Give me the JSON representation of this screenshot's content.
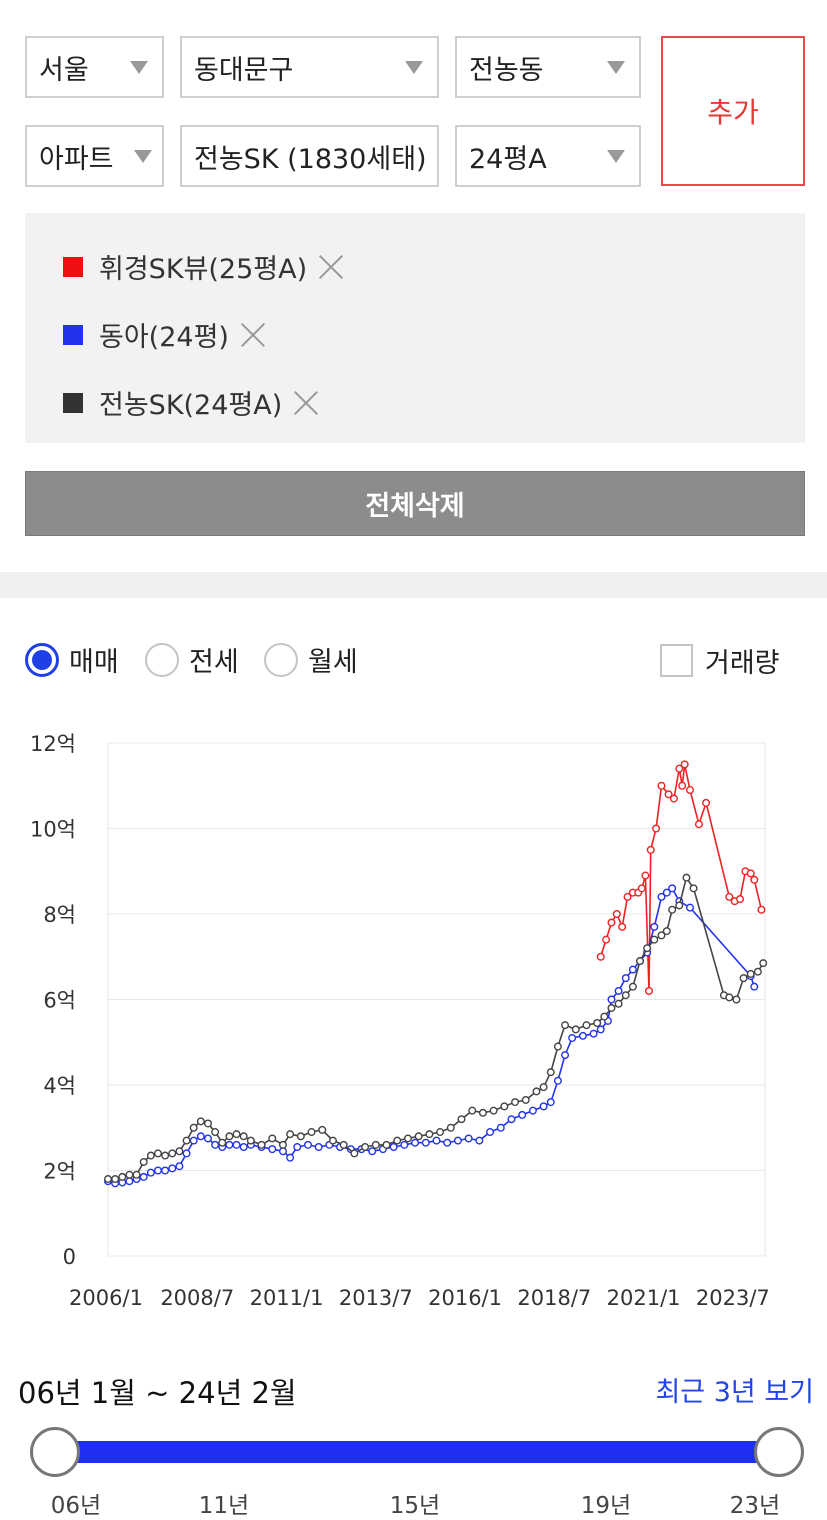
{
  "filters": {
    "city": "서울",
    "district": "동대문구",
    "dong": "전농동",
    "type": "아파트",
    "complex": "전농SK (1830세태)",
    "size": "24평A",
    "add_label": "추가"
  },
  "compare_list": [
    {
      "label": "휘경SK뷰(25평A)",
      "color": "#ee1111"
    },
    {
      "label": "동아(24평)",
      "color": "#2233ee"
    },
    {
      "label": "전농SK(24평A)",
      "color": "#333333"
    }
  ],
  "clear_all_label": "전체삭제",
  "trade_types": [
    "매매",
    "전세",
    "월세"
  ],
  "selected_trade_type": "매매",
  "volume_label": "거래량",
  "chart_data": {
    "type": "line",
    "y_ticks": [
      "0",
      "2억",
      "4억",
      "6억",
      "8억",
      "10억",
      "12억"
    ],
    "x_ticks": [
      "2006/1",
      "2008/7",
      "2011/1",
      "2013/7",
      "2016/1",
      "2018/7",
      "2021/1",
      "2023/7"
    ],
    "ylim": [
      0,
      12
    ],
    "y_unit": "억",
    "grid": true,
    "series": [
      {
        "color": "#ee2222",
        "points": [
          [
            2019.8,
            7.0
          ],
          [
            2019.95,
            7.4
          ],
          [
            2020.1,
            7.8
          ],
          [
            2020.25,
            8.0
          ],
          [
            2020.4,
            7.7
          ],
          [
            2020.55,
            8.4
          ],
          [
            2020.7,
            8.5
          ],
          [
            2020.85,
            8.5
          ],
          [
            2020.95,
            8.6
          ],
          [
            2021.05,
            8.9
          ],
          [
            2021.15,
            6.2
          ],
          [
            2021.2,
            9.5
          ],
          [
            2021.35,
            10.0
          ],
          [
            2021.5,
            11.0
          ],
          [
            2021.7,
            10.8
          ],
          [
            2021.85,
            10.7
          ],
          [
            2022.0,
            11.4
          ],
          [
            2022.08,
            11.0
          ],
          [
            2022.15,
            11.5
          ],
          [
            2022.3,
            10.9
          ],
          [
            2022.55,
            10.1
          ],
          [
            2022.75,
            10.6
          ],
          [
            2023.4,
            8.4
          ],
          [
            2023.55,
            8.3
          ],
          [
            2023.7,
            8.35
          ],
          [
            2023.85,
            9.0
          ],
          [
            2024.0,
            8.95
          ],
          [
            2024.1,
            8.8
          ],
          [
            2024.3,
            8.1
          ]
        ]
      },
      {
        "color": "#2233ee",
        "points": [
          [
            2006.0,
            1.75
          ],
          [
            2006.2,
            1.7
          ],
          [
            2006.4,
            1.72
          ],
          [
            2006.6,
            1.75
          ],
          [
            2006.8,
            1.8
          ],
          [
            2007.0,
            1.85
          ],
          [
            2007.2,
            1.95
          ],
          [
            2007.4,
            2.0
          ],
          [
            2007.6,
            2.0
          ],
          [
            2007.8,
            2.05
          ],
          [
            2008.0,
            2.1
          ],
          [
            2008.2,
            2.4
          ],
          [
            2008.4,
            2.7
          ],
          [
            2008.6,
            2.8
          ],
          [
            2008.8,
            2.75
          ],
          [
            2009.0,
            2.6
          ],
          [
            2009.2,
            2.55
          ],
          [
            2009.4,
            2.6
          ],
          [
            2009.6,
            2.6
          ],
          [
            2009.8,
            2.55
          ],
          [
            2010.0,
            2.6
          ],
          [
            2010.3,
            2.55
          ],
          [
            2010.6,
            2.5
          ],
          [
            2010.9,
            2.45
          ],
          [
            2011.1,
            2.3
          ],
          [
            2011.3,
            2.55
          ],
          [
            2011.6,
            2.6
          ],
          [
            2011.9,
            2.55
          ],
          [
            2012.2,
            2.6
          ],
          [
            2012.5,
            2.55
          ],
          [
            2012.8,
            2.5
          ],
          [
            2013.1,
            2.5
          ],
          [
            2013.4,
            2.45
          ],
          [
            2013.7,
            2.5
          ],
          [
            2014.0,
            2.55
          ],
          [
            2014.3,
            2.6
          ],
          [
            2014.6,
            2.65
          ],
          [
            2014.9,
            2.65
          ],
          [
            2015.2,
            2.7
          ],
          [
            2015.5,
            2.65
          ],
          [
            2015.8,
            2.7
          ],
          [
            2016.1,
            2.75
          ],
          [
            2016.4,
            2.7
          ],
          [
            2016.7,
            2.9
          ],
          [
            2017.0,
            3.0
          ],
          [
            2017.3,
            3.2
          ],
          [
            2017.6,
            3.3
          ],
          [
            2017.9,
            3.4
          ],
          [
            2018.2,
            3.5
          ],
          [
            2018.4,
            3.6
          ],
          [
            2018.6,
            4.1
          ],
          [
            2018.8,
            4.7
          ],
          [
            2019.0,
            5.1
          ],
          [
            2019.3,
            5.15
          ],
          [
            2019.6,
            5.2
          ],
          [
            2019.8,
            5.3
          ],
          [
            2020.0,
            5.5
          ],
          [
            2020.1,
            6.0
          ],
          [
            2020.3,
            6.2
          ],
          [
            2020.5,
            6.5
          ],
          [
            2020.7,
            6.7
          ],
          [
            2020.9,
            6.9
          ],
          [
            2021.1,
            7.1
          ],
          [
            2021.3,
            7.7
          ],
          [
            2021.5,
            8.4
          ],
          [
            2021.65,
            8.5
          ],
          [
            2021.8,
            8.6
          ],
          [
            2022.0,
            8.3
          ],
          [
            2022.3,
            8.15
          ],
          [
            2024.0,
            6.55
          ],
          [
            2024.1,
            6.3
          ]
        ]
      },
      {
        "color": "#444444",
        "points": [
          [
            2006.0,
            1.8
          ],
          [
            2006.2,
            1.8
          ],
          [
            2006.4,
            1.85
          ],
          [
            2006.6,
            1.9
          ],
          [
            2006.8,
            1.9
          ],
          [
            2007.0,
            2.2
          ],
          [
            2007.2,
            2.35
          ],
          [
            2007.4,
            2.4
          ],
          [
            2007.6,
            2.35
          ],
          [
            2007.8,
            2.4
          ],
          [
            2008.0,
            2.45
          ],
          [
            2008.2,
            2.7
          ],
          [
            2008.4,
            3.0
          ],
          [
            2008.6,
            3.15
          ],
          [
            2008.8,
            3.1
          ],
          [
            2009.0,
            2.9
          ],
          [
            2009.2,
            2.65
          ],
          [
            2009.4,
            2.8
          ],
          [
            2009.6,
            2.85
          ],
          [
            2009.8,
            2.8
          ],
          [
            2010.0,
            2.7
          ],
          [
            2010.3,
            2.6
          ],
          [
            2010.6,
            2.75
          ],
          [
            2010.9,
            2.6
          ],
          [
            2011.1,
            2.85
          ],
          [
            2011.4,
            2.8
          ],
          [
            2011.7,
            2.9
          ],
          [
            2012.0,
            2.95
          ],
          [
            2012.3,
            2.7
          ],
          [
            2012.6,
            2.6
          ],
          [
            2012.9,
            2.4
          ],
          [
            2013.2,
            2.55
          ],
          [
            2013.5,
            2.6
          ],
          [
            2013.8,
            2.6
          ],
          [
            2014.1,
            2.7
          ],
          [
            2014.4,
            2.75
          ],
          [
            2014.7,
            2.8
          ],
          [
            2015.0,
            2.85
          ],
          [
            2015.3,
            2.9
          ],
          [
            2015.6,
            3.0
          ],
          [
            2015.9,
            3.2
          ],
          [
            2016.2,
            3.4
          ],
          [
            2016.5,
            3.35
          ],
          [
            2016.8,
            3.4
          ],
          [
            2017.1,
            3.5
          ],
          [
            2017.4,
            3.6
          ],
          [
            2017.7,
            3.65
          ],
          [
            2018.0,
            3.85
          ],
          [
            2018.2,
            3.95
          ],
          [
            2018.4,
            4.3
          ],
          [
            2018.6,
            4.9
          ],
          [
            2018.8,
            5.4
          ],
          [
            2019.1,
            5.3
          ],
          [
            2019.4,
            5.4
          ],
          [
            2019.7,
            5.45
          ],
          [
            2019.9,
            5.6
          ],
          [
            2020.1,
            5.8
          ],
          [
            2020.3,
            5.9
          ],
          [
            2020.5,
            6.1
          ],
          [
            2020.7,
            6.3
          ],
          [
            2020.9,
            6.9
          ],
          [
            2021.1,
            7.2
          ],
          [
            2021.3,
            7.4
          ],
          [
            2021.5,
            7.5
          ],
          [
            2021.65,
            7.6
          ],
          [
            2021.8,
            8.1
          ],
          [
            2022.0,
            8.2
          ],
          [
            2022.2,
            8.85
          ],
          [
            2022.4,
            8.6
          ],
          [
            2023.25,
            6.1
          ],
          [
            2023.4,
            6.05
          ],
          [
            2023.6,
            6.0
          ],
          [
            2023.8,
            6.5
          ],
          [
            2024.0,
            6.6
          ],
          [
            2024.2,
            6.65
          ],
          [
            2024.35,
            6.85
          ]
        ]
      }
    ]
  },
  "range": {
    "text": "06년 1월 ~ 24년 2월",
    "recent_link": "최근 3년 보기",
    "ticks": [
      "06년",
      "11년",
      "15년",
      "19년",
      "23년"
    ],
    "start": "06년",
    "end": "24년"
  }
}
